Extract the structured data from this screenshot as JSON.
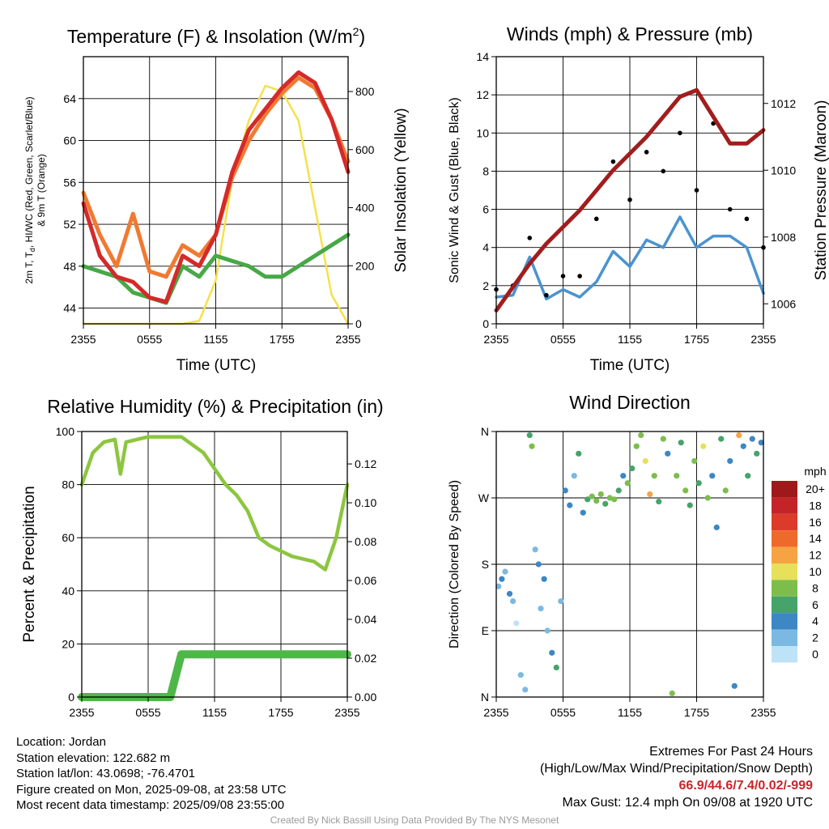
{
  "x_ticks": [
    "2355",
    "0555",
    "1155",
    "1755",
    "2355"
  ],
  "panels": {
    "temperature": {
      "title": "Temperature (F) & Insolation (W/m",
      "title_sup": "2",
      "title_end": ")",
      "left_label_line1": "2m T, T",
      "left_label_sub": "d",
      "left_label_line1_end": ", HI/WC (Red, Green, Scarlet/Blue)",
      "left_label_line2": "& 9m T (Orange)",
      "right_label": "Solar Insolation (Yellow)",
      "xlabel": "Time (UTC)",
      "left_ticks": [
        "44",
        "48",
        "52",
        "56",
        "60",
        "64"
      ],
      "right_ticks": [
        "0",
        "200",
        "400",
        "600",
        "800"
      ]
    },
    "winds": {
      "title": "Winds (mph) & Pressure (mb)",
      "left_label": "Sonic Wind & Gust (Blue, Black)",
      "right_label": "Station Pressure (Maroon)",
      "xlabel": "Time (UTC)",
      "left_ticks": [
        "0",
        "2",
        "4",
        "6",
        "8",
        "10",
        "12",
        "14"
      ],
      "right_ticks": [
        "1006",
        "1008",
        "1010",
        "1012"
      ]
    },
    "humidity": {
      "title": "Relative Humidity (%) & Precipitation (in)",
      "left_label": "Percent & Precipitation",
      "left_ticks": [
        "0",
        "20",
        "40",
        "60",
        "80",
        "100"
      ],
      "right_ticks": [
        "0.00",
        "0.02",
        "0.04",
        "0.06",
        "0.08",
        "0.10",
        "0.12"
      ]
    },
    "direction": {
      "title": "Wind Direction",
      "left_label": "Direction (Colored By Speed)",
      "left_ticks": [
        "N",
        "E",
        "S",
        "W",
        "N"
      ],
      "legend_title": "mph",
      "legend_labels": [
        "20+",
        "18",
        "16",
        "14",
        "12",
        "10",
        "8",
        "6",
        "4",
        "2",
        "0"
      ],
      "legend_colors": [
        "#9e1a1a",
        "#c42327",
        "#dd3b2a",
        "#ee6a2c",
        "#f6a343",
        "#e6e05a",
        "#7dbd4c",
        "#46a36a",
        "#3d87c4",
        "#7cb9e2",
        "#bfe3f6"
      ]
    }
  },
  "info": {
    "location": "Location: Jordan",
    "elevation": "Station elevation: 122.682 m",
    "latlon": "Station lat/lon: 43.0698; -76.4701",
    "created": "Figure created on Mon, 2025-09-08, at 23:58 UTC",
    "recent": "Most recent data timestamp: 2025/09/08 23:55:00"
  },
  "extremes": {
    "title": "Extremes For Past 24 Hours",
    "subtitle": "(High/Low/Max Wind/Precipitation/Snow Depth)",
    "values": "66.9/44.6/7.4/0.02/-999",
    "max_gust": "Max Gust: 12.4 mph On 09/08 at 1920 UTC"
  },
  "credit": "Created By Nick Bassill Using Data Provided By The NYS Mesonet",
  "colors": {
    "temp": "#d42a2a",
    "nine_m": "#f07a32",
    "dewpoint": "#46a846",
    "solar": "#f7e04a",
    "wind": "#4a93d0",
    "gust": "#000000",
    "pressure": "#a11d1d",
    "rh": "#8cc63f",
    "precip": "#4db848"
  },
  "chart_data": [
    {
      "type": "line",
      "panel": "temperature",
      "x_unit": "hours since 2355 UTC",
      "x": [
        0,
        1.5,
        3,
        4.5,
        6,
        7.5,
        9,
        10.5,
        12,
        13.5,
        15,
        16.5,
        18,
        19.5,
        21,
        22.5,
        24
      ],
      "series": [
        {
          "axis": "left",
          "values": [
            54,
            49,
            47,
            46.5,
            45,
            44.6,
            49,
            48,
            51,
            57,
            61,
            63,
            65,
            66.5,
            65.5,
            62,
            57
          ]
        },
        {
          "axis": "left",
          "values": [
            55,
            51,
            48,
            53,
            47.5,
            47,
            50,
            49,
            51,
            56.5,
            60,
            62.5,
            64.5,
            66,
            65,
            62,
            58
          ]
        },
        {
          "axis": "left",
          "values": [
            48,
            47.5,
            47,
            45.5,
            45,
            44.5,
            48,
            47,
            49,
            48.5,
            48,
            47,
            47,
            48,
            49,
            50,
            51
          ]
        },
        {
          "axis": "right",
          "values": [
            0,
            0,
            0,
            0,
            0,
            0,
            0,
            10,
            150,
            500,
            700,
            820,
            800,
            700,
            400,
            100,
            0
          ]
        }
      ],
      "ylim_left": [
        42.5,
        68
      ],
      "ylim_right": [
        0,
        920
      ]
    },
    {
      "type": "line",
      "panel": "winds",
      "x_unit": "hours since 2355 UTC",
      "x": [
        0,
        1.5,
        3,
        4.5,
        6,
        7.5,
        9,
        10.5,
        12,
        13.5,
        15,
        16.5,
        18,
        19.5,
        21,
        22.5,
        24
      ],
      "series": [
        {
          "axis": "left",
          "values": [
            1.4,
            1.5,
            3.5,
            1.3,
            1.8,
            1.4,
            2.2,
            3.8,
            3.0,
            4.4,
            4.0,
            5.6,
            4.0,
            4.6,
            4.6,
            4.0,
            1.6
          ]
        },
        {
          "axis": "left",
          "values": [
            1.8,
            2.0,
            4.5,
            1.5,
            2.5,
            2.5,
            5.5,
            8.5,
            6.5,
            9.0,
            8.0,
            10.0,
            7.0,
            10.5,
            6.0,
            5.5,
            4.0
          ]
        },
        {
          "axis": "right",
          "values": [
            1005.8,
            1006.5,
            1007.2,
            1007.8,
            1008.3,
            1008.8,
            1009.4,
            1010.0,
            1010.5,
            1011.0,
            1011.6,
            1012.2,
            1012.4,
            1011.6,
            1010.8,
            1010.8,
            1011.2
          ]
        }
      ],
      "ylim_left": [
        0,
        14
      ],
      "ylim_right": [
        1005.4,
        1013.4
      ]
    },
    {
      "type": "line",
      "panel": "humidity",
      "x_unit": "hours since 2355 UTC",
      "x": [
        0,
        1,
        2,
        3,
        3.5,
        4,
        5,
        6,
        7,
        8,
        9,
        10,
        11,
        12,
        13,
        14,
        15,
        16,
        17,
        18,
        19,
        20,
        21,
        22,
        23,
        24
      ],
      "series": [
        {
          "axis": "left",
          "values": [
            80,
            92,
            96,
            97,
            84,
            96,
            97,
            98,
            98,
            98,
            98,
            95,
            92,
            86,
            80,
            76,
            70,
            60,
            57,
            55,
            53,
            52,
            51,
            48,
            60,
            80
          ]
        },
        {
          "axis": "right",
          "values": [
            0,
            0,
            0,
            0,
            0,
            0,
            0,
            0,
            0,
            0,
            0.022,
            0.022,
            0.022,
            0.022,
            0.022,
            0.022,
            0.022,
            0.022,
            0.022,
            0.022,
            0.022,
            0.022,
            0.022,
            0.022,
            0.022,
            0.022
          ]
        }
      ],
      "ylim_left": [
        0,
        100
      ],
      "ylim_right": [
        0,
        0.1367
      ]
    },
    {
      "type": "scatter",
      "panel": "direction",
      "x_unit": "hours since 2355 UTC",
      "y_unit": "degrees (0=N, 90=E, 180=S, 270=W, 360=N)",
      "points": [
        [
          0.2,
          150,
          1
        ],
        [
          0.5,
          160,
          2
        ],
        [
          0.8,
          170,
          1
        ],
        [
          1.2,
          140,
          2
        ],
        [
          1.5,
          130,
          1
        ],
        [
          1.8,
          100,
          0
        ],
        [
          2.2,
          30,
          1
        ],
        [
          2.6,
          10,
          1
        ],
        [
          3.0,
          355,
          3
        ],
        [
          3.2,
          340,
          4
        ],
        [
          3.5,
          200,
          1
        ],
        [
          3.8,
          180,
          2
        ],
        [
          4.0,
          120,
          1
        ],
        [
          4.3,
          160,
          2
        ],
        [
          4.6,
          90,
          1
        ],
        [
          5.0,
          60,
          2
        ],
        [
          5.4,
          40,
          3
        ],
        [
          5.8,
          130,
          1
        ],
        [
          6.2,
          280,
          2
        ],
        [
          6.6,
          260,
          2
        ],
        [
          7.0,
          300,
          1
        ],
        [
          7.4,
          330,
          3
        ],
        [
          7.8,
          250,
          2
        ],
        [
          8.2,
          268,
          3
        ],
        [
          8.6,
          272,
          4
        ],
        [
          9.0,
          266,
          4
        ],
        [
          9.4,
          275,
          4
        ],
        [
          9.8,
          262,
          3
        ],
        [
          10.2,
          270,
          4
        ],
        [
          10.6,
          268,
          4
        ],
        [
          11.0,
          280,
          3
        ],
        [
          11.4,
          300,
          2
        ],
        [
          11.8,
          290,
          4
        ],
        [
          12.2,
          310,
          3
        ],
        [
          12.6,
          340,
          4
        ],
        [
          13.0,
          355,
          4
        ],
        [
          13.4,
          320,
          5
        ],
        [
          13.8,
          275,
          6
        ],
        [
          14.2,
          300,
          4
        ],
        [
          14.6,
          265,
          3
        ],
        [
          15.0,
          350,
          4
        ],
        [
          15.4,
          330,
          2
        ],
        [
          15.8,
          5,
          4
        ],
        [
          16.2,
          300,
          4
        ],
        [
          16.6,
          345,
          3
        ],
        [
          17.0,
          280,
          4
        ],
        [
          17.4,
          260,
          3
        ],
        [
          17.8,
          320,
          4
        ],
        [
          18.2,
          290,
          3
        ],
        [
          18.6,
          340,
          5
        ],
        [
          19.0,
          270,
          4
        ],
        [
          19.4,
          300,
          2
        ],
        [
          19.8,
          230,
          2
        ],
        [
          20.2,
          350,
          3
        ],
        [
          20.6,
          280,
          4
        ],
        [
          21.0,
          320,
          2
        ],
        [
          21.4,
          15,
          2
        ],
        [
          21.8,
          355,
          6
        ],
        [
          22.2,
          340,
          2
        ],
        [
          22.6,
          300,
          3
        ],
        [
          23.0,
          350,
          2
        ],
        [
          23.4,
          330,
          3
        ],
        [
          23.8,
          345,
          2
        ]
      ],
      "ylim": [
        0,
        360
      ]
    }
  ]
}
